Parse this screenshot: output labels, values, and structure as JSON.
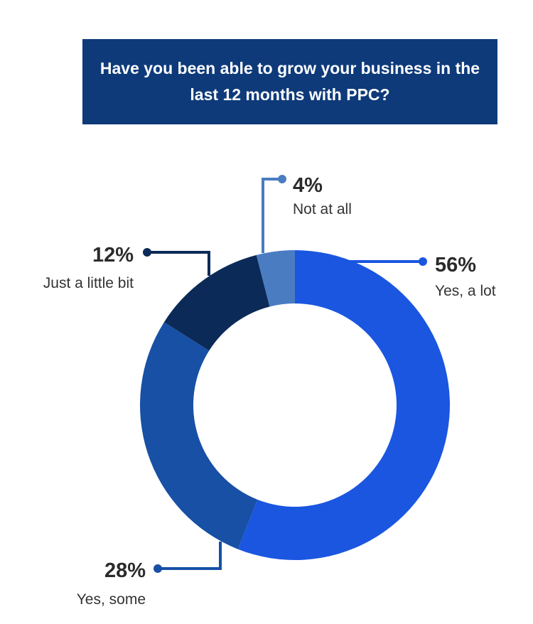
{
  "title": "Have you been able to grow your business in the last 12 months with PPC?",
  "chart_data": {
    "type": "pie",
    "title": "Have you been able to grow your business in the last 12 months with PPC?",
    "slices": [
      {
        "label": "Yes, a lot",
        "value": 56,
        "display": "56%",
        "color": "#1a56e0"
      },
      {
        "label": "Yes, some",
        "value": 28,
        "display": "28%",
        "color": "#1750a5"
      },
      {
        "label": "Just a little bit",
        "value": 12,
        "display": "12%",
        "color": "#0b2a57"
      },
      {
        "label": "Not at all",
        "value": 4,
        "display": "4%",
        "color": "#4a7cc2"
      }
    ]
  }
}
